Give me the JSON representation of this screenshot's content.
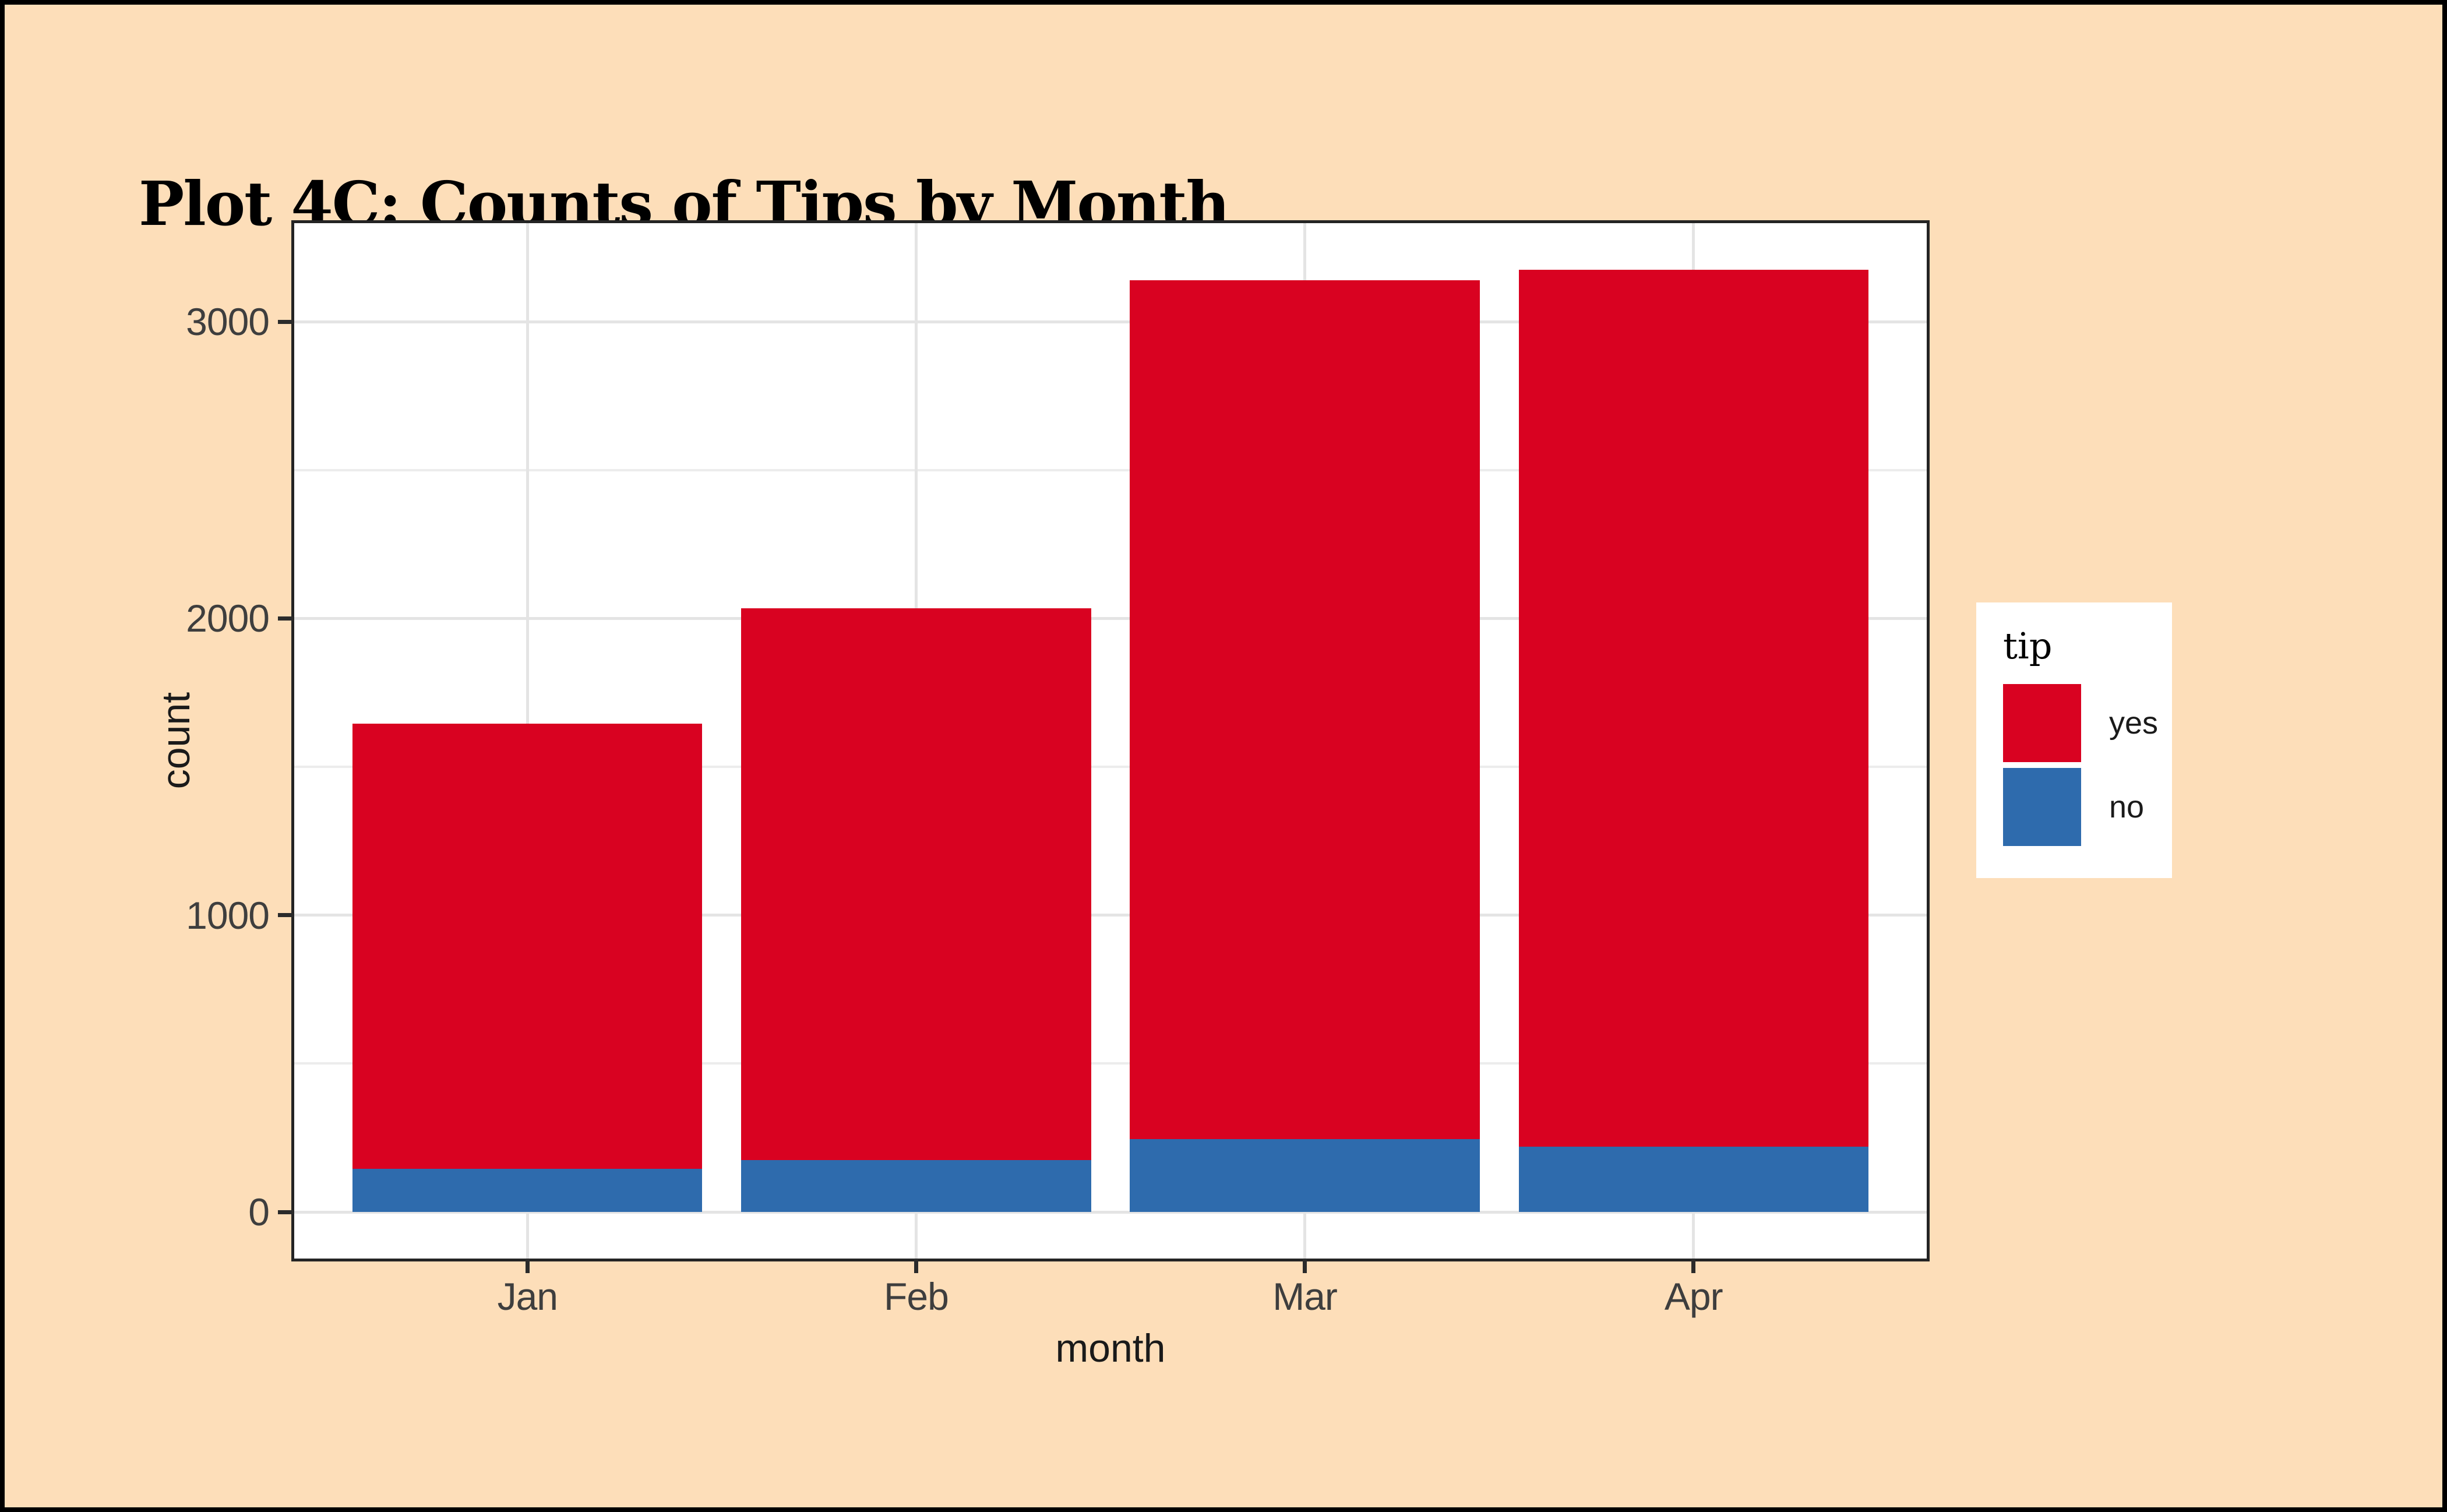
{
  "page_title": "Plot 4C: Counts of Tips by Month",
  "axes": {
    "x_title": "month",
    "y_title": "count",
    "x_tick_labels": [
      "Jan",
      "Feb",
      "Mar",
      "Apr"
    ],
    "y_tick_labels": [
      "0",
      "1000",
      "2000",
      "3000"
    ]
  },
  "legend": {
    "title": "tip",
    "items": [
      {
        "label": "yes",
        "color": "#D90221"
      },
      {
        "label": "no",
        "color": "#2E6BAD"
      }
    ]
  },
  "colors": {
    "background": "#FDDEB9",
    "panel": "#FFFFFF",
    "grid_major": "#E4E4E4",
    "grid_minor": "#ECECEC",
    "axis_text": "#3E3E3E",
    "tick_mark": "#2B2B2B",
    "panel_border": "#242424",
    "outer_border": "#000000",
    "yes": "#D90221",
    "no": "#2E6BAD"
  },
  "chart_data": {
    "type": "bar",
    "stacked": true,
    "title": "Plot 4C: Counts of Tips by Month",
    "xlabel": "month",
    "ylabel": "count",
    "categories": [
      "Jan",
      "Feb",
      "Mar",
      "Apr"
    ],
    "series": [
      {
        "name": "no",
        "color": "#2E6BAD",
        "values": [
          145,
          175,
          245,
          220
        ]
      },
      {
        "name": "yes",
        "color": "#D90221",
        "values": [
          1500,
          1860,
          2895,
          2955
        ]
      }
    ],
    "stack_order_bottom_to_top": [
      "no",
      "yes"
    ],
    "totals": [
      1645,
      2035,
      3140,
      3175
    ],
    "y_axis": {
      "ticks": [
        0,
        1000,
        2000,
        3000
      ],
      "minor_ticks": [
        500,
        1500,
        2500
      ],
      "range": [
        -157,
        3332
      ]
    },
    "grid": true,
    "legend_position": "right",
    "bar_width_fraction": 0.9
  }
}
